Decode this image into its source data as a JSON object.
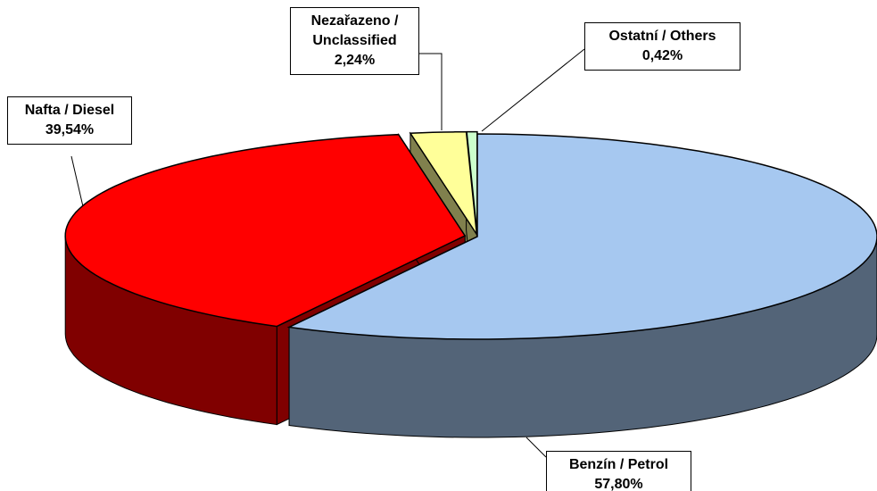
{
  "chart_data": {
    "type": "pie",
    "categories": [
      "Benzín / Petrol",
      "Nafta / Diesel",
      "Nezařazeno / Unclassified",
      "Ostatní / Others"
    ],
    "values": [
      57.8,
      39.54,
      2.24,
      0.42
    ],
    "value_labels": [
      "57,80%",
      "39,54%",
      "2,24%",
      "0,42%"
    ],
    "colors": [
      "#a6c8f0",
      "#ff0000",
      "#ffff99",
      "#ccffcc"
    ],
    "three_d": true
  }
}
